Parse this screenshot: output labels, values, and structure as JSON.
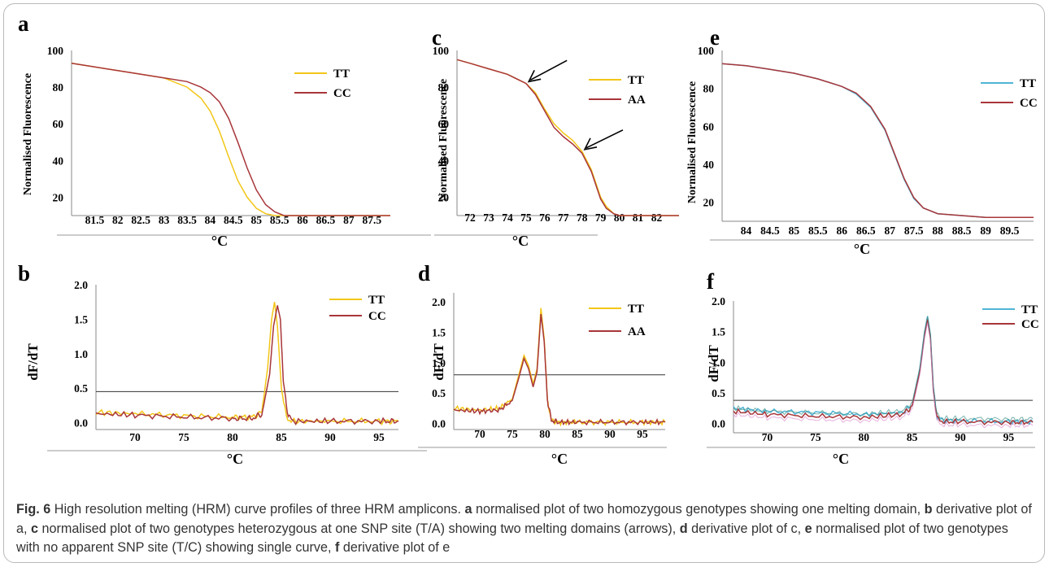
{
  "caption": {
    "fig_label": "Fig. 6",
    "title": " High resolution melting (HRM) curve profiles of three HRM amplicons. ",
    "segments": [
      {
        "letter": "a",
        "text": " normalised plot of two homozygous genotypes showing one melting domain, "
      },
      {
        "letter": "b",
        "text": " derivative plot of a, "
      },
      {
        "letter": "c",
        "text": " normalised plot of two genotypes heterozygous at one SNP site (T/A) showing two melting domains (arrows), "
      },
      {
        "letter": "d",
        "text": " derivative plot of c, "
      },
      {
        "letter": "e",
        "text": " normalised plot of two genotypes with no apparent SNP site (T/C) showing single curve, "
      },
      {
        "letter": "f",
        "text": " derivative plot of e"
      }
    ]
  },
  "colors": {
    "TT_yellow": "#f2c618",
    "TT_green": "#b7d35a",
    "CC_red": "#a8363a",
    "AA_red": "#a8363a",
    "TT_blue": "#4fb5d6",
    "teal": "#3a8f86",
    "pink": "#d67cc8"
  },
  "chart_data": [
    {
      "panel": "a",
      "type": "line",
      "xlabel": "°C",
      "ylabel": "Normalised Fluorescence",
      "xlim": [
        81.0,
        87.9
      ],
      "ylim": [
        10,
        100
      ],
      "xticks": [
        "81.5",
        "82",
        "82.5",
        "83",
        "83.5",
        "84",
        "84.5",
        "85",
        "85.5",
        "86",
        "86.5",
        "87",
        "87.5"
      ],
      "yticks": [
        "20",
        "40",
        "60",
        "80",
        "100"
      ],
      "legend": [
        "TT",
        "CC"
      ],
      "series": [
        {
          "name": "TT",
          "x": [
            81.0,
            81.5,
            82.0,
            82.5,
            83.0,
            83.5,
            83.8,
            84.0,
            84.2,
            84.4,
            84.6,
            84.8,
            85.0,
            85.2,
            85.4,
            85.6,
            86.0,
            86.5,
            87.0,
            87.5,
            87.9
          ],
          "y": [
            93,
            91,
            89,
            87,
            85,
            80,
            74,
            67,
            56,
            42,
            29,
            20,
            14,
            11,
            10,
            10,
            10,
            10,
            10,
            10,
            10
          ]
        },
        {
          "name": "CC",
          "x": [
            81.0,
            81.5,
            82.0,
            82.5,
            83.0,
            83.5,
            83.8,
            84.0,
            84.2,
            84.4,
            84.6,
            84.8,
            85.0,
            85.2,
            85.4,
            85.6,
            86.0,
            86.5,
            87.0,
            87.5,
            87.9
          ],
          "y": [
            93,
            91,
            89,
            87,
            85,
            83,
            80,
            77,
            72,
            63,
            50,
            36,
            24,
            16,
            12,
            10,
            10,
            10,
            10,
            10,
            10
          ]
        }
      ]
    },
    {
      "panel": "b",
      "type": "line",
      "xlabel": "°C",
      "ylabel": "dF/dT",
      "xlim": [
        66,
        97
      ],
      "ylim": [
        -0.1,
        2.0
      ],
      "xticks": [
        "70",
        "75",
        "80",
        "85",
        "90",
        "95"
      ],
      "yticks": [
        "0.0",
        "0.5",
        "1.0",
        "1.5",
        "2.0"
      ],
      "threshold": 0.45,
      "legend": [
        "TT",
        "CC"
      ],
      "series": [
        {
          "name": "TT",
          "x": [
            66,
            70,
            75,
            80,
            82,
            83,
            83.6,
            84.0,
            84.3,
            84.6,
            85.0,
            85.5,
            86,
            90,
            95,
            97
          ],
          "y": [
            0.15,
            0.13,
            0.1,
            0.08,
            0.08,
            0.15,
            0.8,
            1.5,
            1.75,
            1.4,
            0.5,
            0.08,
            0.02,
            0.02,
            0.02,
            0.02
          ]
        },
        {
          "name": "CC",
          "x": [
            66,
            70,
            75,
            80,
            82,
            83,
            83.8,
            84.2,
            84.6,
            84.9,
            85.2,
            85.7,
            86.2,
            90,
            95,
            97
          ],
          "y": [
            0.13,
            0.11,
            0.08,
            0.06,
            0.06,
            0.12,
            0.7,
            1.4,
            1.7,
            1.5,
            0.6,
            0.1,
            0.02,
            0.02,
            0.02,
            0.02
          ]
        }
      ]
    },
    {
      "panel": "c",
      "type": "line",
      "xlabel": "°C",
      "ylabel": "Normalised Fluorescence",
      "xlim": [
        71.3,
        83.2
      ],
      "ylim": [
        10,
        100
      ],
      "xticks": [
        "72",
        "73",
        "74",
        "75",
        "76",
        "77",
        "78",
        "79",
        "80",
        "81",
        "82"
      ],
      "yticks": [
        "20",
        "40",
        "60",
        "80",
        "100"
      ],
      "legend": [
        "TT",
        "AA"
      ],
      "series": [
        {
          "name": "TT",
          "x": [
            71.3,
            72,
            73,
            74,
            75,
            75.5,
            76,
            76.5,
            77,
            77.5,
            78,
            78.5,
            79,
            79.3,
            79.7,
            80,
            80.5,
            81,
            82,
            83.2
          ],
          "y": [
            95,
            93,
            90,
            87,
            82,
            77,
            68,
            60,
            55,
            51,
            45,
            35,
            20,
            15,
            11,
            10,
            10,
            10,
            10,
            10
          ]
        },
        {
          "name": "AA",
          "x": [
            71.3,
            72,
            73,
            74,
            75,
            75.5,
            76,
            76.5,
            77,
            77.5,
            78,
            78.5,
            79,
            79.3,
            79.7,
            80,
            80.5,
            81,
            82,
            83.2
          ],
          "y": [
            95,
            93,
            90,
            87,
            82,
            76,
            67,
            58,
            53,
            49,
            44,
            34,
            19,
            14,
            11,
            10,
            10,
            10,
            10,
            10
          ]
        }
      ],
      "annotations": [
        "arrow at 75 °C",
        "arrow at 78 °C"
      ]
    },
    {
      "panel": "d",
      "type": "line",
      "xlabel": "°C",
      "ylabel": "dF/dT",
      "xlim": [
        66,
        98.5
      ],
      "ylim": [
        -0.1,
        2.15
      ],
      "xticks": [
        "70",
        "75",
        "80",
        "85",
        "90",
        "95"
      ],
      "yticks": [
        "0.0",
        "0.5",
        "1.0",
        "1.5",
        "2.0"
      ],
      "threshold": 0.8,
      "legend": [
        "TT",
        "AA"
      ],
      "series": [
        {
          "name": "TT",
          "x": [
            66,
            70,
            73,
            75,
            76,
            76.8,
            77.5,
            78.2,
            78.8,
            79.4,
            79.9,
            80.4,
            81,
            82,
            85,
            90,
            95,
            98.5
          ],
          "y": [
            0.25,
            0.22,
            0.25,
            0.4,
            0.8,
            1.12,
            0.95,
            0.65,
            0.9,
            1.9,
            1.4,
            0.4,
            0.05,
            0.02,
            0.02,
            0.02,
            0.02,
            0.02
          ]
        },
        {
          "name": "AA",
          "x": [
            66,
            70,
            73,
            75,
            76,
            76.8,
            77.5,
            78.2,
            78.8,
            79.4,
            79.9,
            80.4,
            81,
            82,
            85,
            90,
            95,
            98.5
          ],
          "y": [
            0.22,
            0.2,
            0.22,
            0.38,
            0.75,
            1.07,
            0.9,
            0.6,
            0.85,
            1.8,
            1.35,
            0.38,
            0.05,
            0.02,
            0.02,
            0.02,
            0.02,
            0.02
          ]
        }
      ]
    },
    {
      "panel": "e",
      "type": "line",
      "xlabel": "°C",
      "ylabel": "Normalised Fluorescence",
      "xlim": [
        83.5,
        90.0
      ],
      "ylim": [
        10,
        100
      ],
      "xticks": [
        "84",
        "84.5",
        "85",
        "85.5",
        "86",
        "86.5",
        "87",
        "87.5",
        "88",
        "88.5",
        "89",
        "89.5"
      ],
      "yticks": [
        "20",
        "40",
        "60",
        "80",
        "100"
      ],
      "legend": [
        "TT",
        "CC"
      ],
      "series": [
        {
          "name": "TT",
          "x": [
            83.5,
            84,
            84.5,
            85,
            85.5,
            86,
            86.3,
            86.6,
            86.9,
            87.1,
            87.3,
            87.5,
            87.7,
            88,
            88.5,
            89,
            89.5,
            90
          ],
          "y": [
            93,
            92,
            90,
            88,
            85,
            81,
            77,
            70,
            58,
            45,
            32,
            22,
            17,
            14,
            13,
            12,
            12,
            12
          ]
        },
        {
          "name": "CC",
          "x": [
            83.5,
            84,
            84.5,
            85,
            85.5,
            86,
            86.3,
            86.6,
            86.9,
            87.1,
            87.3,
            87.5,
            87.7,
            88,
            88.5,
            89,
            89.5,
            90
          ],
          "y": [
            93,
            92,
            90,
            88,
            85,
            81,
            77.5,
            70.5,
            58.5,
            45.5,
            32.5,
            22.5,
            17,
            14,
            13,
            12,
            12,
            12
          ]
        }
      ]
    },
    {
      "panel": "f",
      "type": "line",
      "xlabel": "°C",
      "ylabel": "dF/dT",
      "xlim": [
        66.5,
        97.5
      ],
      "ylim": [
        -0.15,
        2.0
      ],
      "xticks": [
        "70",
        "75",
        "80",
        "85",
        "90",
        "95"
      ],
      "yticks": [
        "0.0",
        "0.5",
        "1.0",
        "1.5",
        "2.0"
      ],
      "threshold": 0.38,
      "legend": [
        "TT",
        "CC"
      ],
      "series": [
        {
          "name": "TT",
          "x": [
            66.5,
            70,
            75,
            80,
            84,
            85,
            85.8,
            86.3,
            86.6,
            86.9,
            87.2,
            87.6,
            88.2,
            90,
            95,
            97.5
          ],
          "y": [
            0.25,
            0.2,
            0.18,
            0.15,
            0.18,
            0.3,
            0.9,
            1.5,
            1.75,
            1.45,
            0.6,
            0.1,
            0.05,
            0.05,
            0.03,
            0.03
          ]
        },
        {
          "name": "CC",
          "x": [
            66.5,
            70,
            75,
            80,
            84,
            85,
            85.8,
            86.3,
            86.6,
            86.9,
            87.2,
            87.6,
            88.2,
            90,
            95,
            97.5
          ],
          "y": [
            0.2,
            0.15,
            0.12,
            0.1,
            0.15,
            0.28,
            0.85,
            1.45,
            1.7,
            1.4,
            0.55,
            0.08,
            0.03,
            0.03,
            0.02,
            0.02
          ]
        }
      ]
    }
  ]
}
